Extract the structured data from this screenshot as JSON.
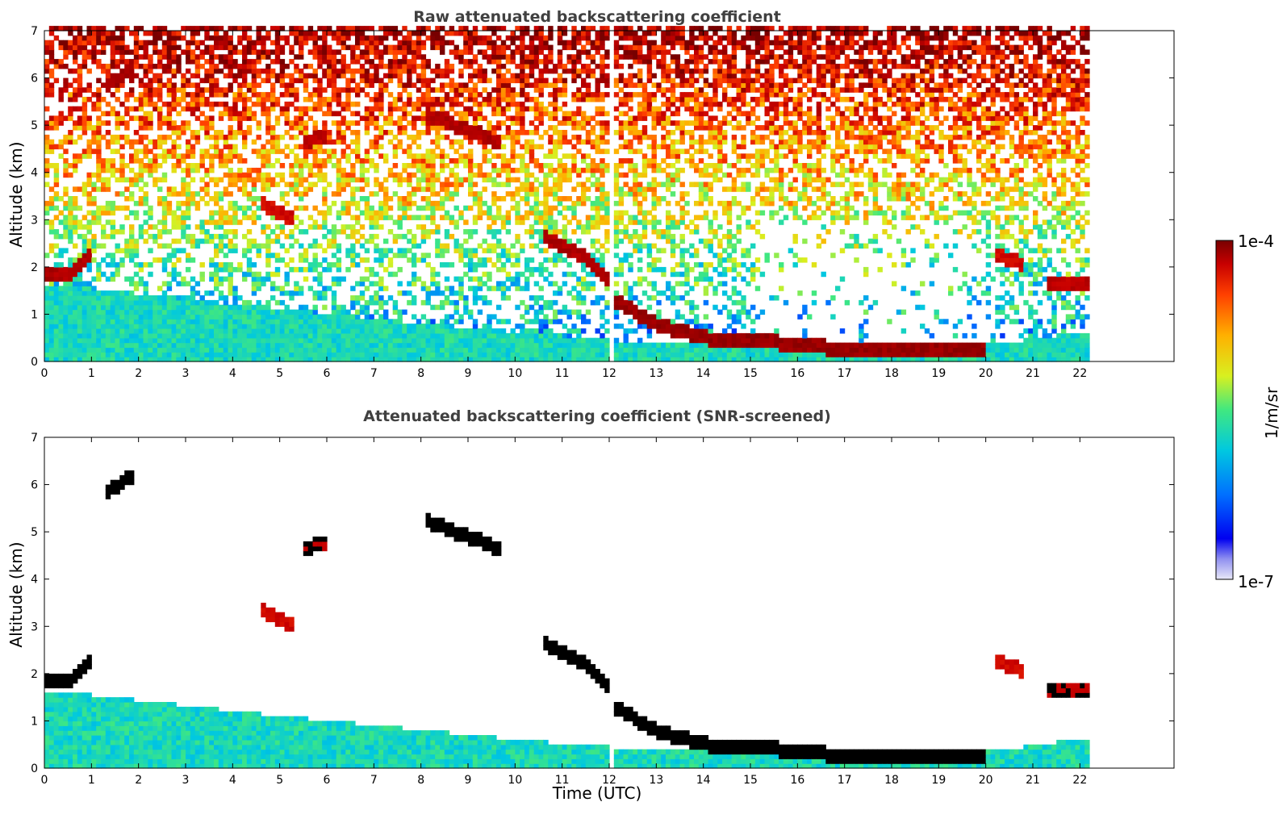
{
  "chart_data": [
    {
      "type": "heatmap",
      "title": "Raw attenuated backscattering coefficient",
      "xlabel": "",
      "ylabel": "Altitude (km)",
      "xlim": [
        0,
        24
      ],
      "ylim": [
        0,
        7
      ],
      "xticks": [
        "0",
        "1",
        "2",
        "3",
        "4",
        "5",
        "6",
        "7",
        "8",
        "9",
        "10",
        "11",
        "12",
        "13",
        "14",
        "15",
        "16",
        "17",
        "18",
        "19",
        "20",
        "21",
        "22"
      ],
      "yticks": [
        "0",
        "1",
        "2",
        "3",
        "4",
        "5",
        "6",
        "7"
      ],
      "data_end_time": 22.2,
      "gap_time": 12.0,
      "mode": "raw",
      "features": [
        {
          "name": "boundary-layer",
          "x": [
            0,
            5,
            10,
            12,
            16,
            20,
            22.2
          ],
          "top": [
            1.6,
            1.05,
            0.55,
            0.4,
            0.3,
            0.3,
            0.6
          ],
          "level": 0.38
        },
        {
          "name": "cloud-base-low",
          "x": [
            12,
            13,
            14,
            15,
            16,
            17,
            18,
            19,
            20
          ],
          "y": [
            1.3,
            0.7,
            0.45,
            0.4,
            0.3,
            0.2,
            0.2,
            0.2,
            0.25
          ],
          "level": 0.98
        },
        {
          "name": "cloud-layer-1.8km",
          "x": [
            0,
            0.5,
            0.9
          ],
          "y": [
            1.8,
            1.85,
            2.2
          ],
          "level": 0.95
        },
        {
          "name": "cloud-6km",
          "x": [
            1.3,
            1.9
          ],
          "y": [
            5.8,
            6.2
          ],
          "level": 0.97
        },
        {
          "name": "cloud-5km",
          "x": [
            8.0,
            9.6
          ],
          "y": [
            5.2,
            4.6
          ],
          "level": 0.95
        },
        {
          "name": "cloud-4.7km",
          "x": [
            5.4,
            5.9
          ],
          "y": [
            4.6,
            4.7
          ],
          "level": 0.93
        },
        {
          "name": "cloud-3km",
          "x": [
            4.6,
            5.2
          ],
          "y": [
            3.3,
            3.0
          ],
          "level": 0.9
        },
        {
          "name": "cloud-2.5km-descending",
          "x": [
            10.5,
            11.0,
            11.5,
            12.0
          ],
          "y": [
            2.6,
            2.4,
            2.1,
            1.6
          ],
          "level": 0.95
        },
        {
          "name": "cloud-2km-right",
          "x": [
            20.2,
            20.8
          ],
          "y": [
            2.2,
            2.0
          ],
          "level": 0.9
        },
        {
          "name": "cloud-1.6km-right",
          "x": [
            21.3,
            22.2
          ],
          "y": [
            1.6,
            1.6
          ],
          "level": 0.93
        }
      ]
    },
    {
      "type": "heatmap",
      "title": "Attenuated backscattering coefficient (SNR-screened)",
      "xlabel": "Time (UTC)",
      "ylabel": "Altitude (km)",
      "xlim": [
        0,
        24
      ],
      "ylim": [
        0,
        7
      ],
      "xticks": [
        "0",
        "1",
        "2",
        "3",
        "4",
        "5",
        "6",
        "7",
        "8",
        "9",
        "10",
        "11",
        "12",
        "13",
        "14",
        "15",
        "16",
        "17",
        "18",
        "19",
        "20",
        "21",
        "22"
      ],
      "yticks": [
        "0",
        "1",
        "2",
        "3",
        "4",
        "5",
        "6",
        "7"
      ],
      "data_end_time": 22.2,
      "gap_time": 12.0,
      "mode": "screened"
    }
  ],
  "colorbar": {
    "label": "1/m/sr",
    "max_label": "1e-4",
    "min_label": "1e-7",
    "colors": [
      "#e8e8f8",
      "#0000f0",
      "#0070ff",
      "#00c8e0",
      "#40e880",
      "#d8f020",
      "#ffb000",
      "#ff4000",
      "#c80000",
      "#780000"
    ]
  }
}
